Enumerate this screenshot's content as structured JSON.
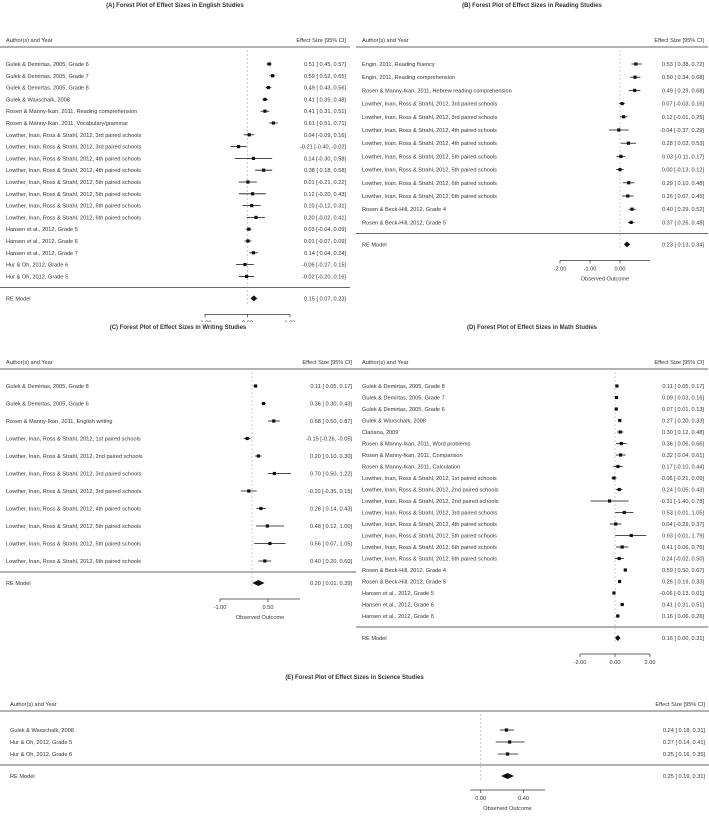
{
  "chart_data": [
    {
      "type": "forest",
      "title": "(A) Forest Plot of Effect Sizes in English Studies",
      "col_study": "Author(s) and Year",
      "col_es": "Effect Size [95% CI]",
      "rows": [
        {
          "label": "Gulek & Demirtas, 2005, Grade 6",
          "es": 0.51,
          "lo": 0.45,
          "hi": 0.57,
          "ci": "0.51 [ 0.45, 0.57]"
        },
        {
          "label": "Gulek & Demirtas, 2005, Grade 7",
          "es": 0.59,
          "lo": 0.52,
          "hi": 0.65,
          "ci": "0.59 [ 0.52, 0.65]"
        },
        {
          "label": "Gulek & Demirtas, 2005, Grade 8",
          "es": 0.49,
          "lo": 0.43,
          "hi": 0.56,
          "ci": "0.49 [ 0.43, 0.56]"
        },
        {
          "label": "Gulek & Waxschalk, 2008",
          "es": 0.41,
          "lo": 0.35,
          "hi": 0.48,
          "ci": "0.41 [ 0.35, 0.48]"
        },
        {
          "label": "Rosen & Manny-Ikan, 2011, Reading comprehension",
          "es": 0.41,
          "lo": 0.31,
          "hi": 0.51,
          "ci": "0.41 [ 0.31, 0.51]"
        },
        {
          "label": "Rosen & Manny-Ikan, 2011, Vocabulary/grammar",
          "es": 0.61,
          "lo": 0.51,
          "hi": 0.71,
          "ci": "0.61 [ 0.51, 0.71]"
        },
        {
          "label": "Lowther, Inan, Ross & Strahl, 2012, 3rd paired schools",
          "es": 0.04,
          "lo": -0.09,
          "hi": 0.16,
          "ci": "0.04 [-0.09, 0.16]"
        },
        {
          "label": "Lowther, Inan, Ross & Strahl, 2012, 3rd paired schools",
          "es": -0.21,
          "lo": -0.4,
          "hi": -0.02,
          "ci": "-0.21 [-0.40, -0.02]"
        },
        {
          "label": "Lowther, Inan, Ross & Strahl, 2012, 4th paired schools",
          "es": 0.14,
          "lo": -0.3,
          "hi": 0.58,
          "ci": "0.14 [-0.30, 0.58]"
        },
        {
          "label": "Lowther, Inan, Ross & Strahl, 2012, 4th paired schools",
          "es": 0.38,
          "lo": 0.18,
          "hi": 0.58,
          "ci": "0.38 [ 0.18, 0.58]"
        },
        {
          "label": "Lowther, Inan, Ross & Strahl, 2012, 5th paired schools",
          "es": 0.01,
          "lo": -0.21,
          "hi": 0.22,
          "ci": "0.01 [-0.21, 0.22]"
        },
        {
          "label": "Lowther, Inan, Ross & Strahl, 2012, 5th paired schools",
          "es": 0.12,
          "lo": -0.2,
          "hi": 0.43,
          "ci": "0.12 [-0.20, 0.43]"
        },
        {
          "label": "Lowther, Inan, Ross & Strahl, 2012, 6th paired schools",
          "es": 0.1,
          "lo": -0.12,
          "hi": 0.31,
          "ci": "0.10 [-0.12, 0.31]"
        },
        {
          "label": "Lowther, Inan, Ross & Strahl, 2012, 6th paired schools",
          "es": 0.2,
          "lo": -0.02,
          "hi": 0.41,
          "ci": "0.20 [-0.02, 0.41]"
        },
        {
          "label": "Hansen et al., 2012, Grade 5",
          "es": 0.03,
          "lo": -0.04,
          "hi": 0.09,
          "ci": "0.03 [-0.04, 0.09]"
        },
        {
          "label": "Hansen et al., 2012, Grade 6",
          "es": 0.01,
          "lo": -0.07,
          "hi": 0.09,
          "ci": "0.01 [-0.07, 0.09]"
        },
        {
          "label": "Hansen et al., 2012, Grade 7",
          "es": 0.14,
          "lo": 0.04,
          "hi": 0.24,
          "ci": "0.14 [ 0.04, 0.24]"
        },
        {
          "label": "Hur & Oh, 2012, Grade 6",
          "es": -0.06,
          "lo": -0.27,
          "hi": 0.15,
          "ci": "-0.06 [-0.27, 0.15]"
        },
        {
          "label": "Hur & Oh, 2012, Grade 5",
          "es": -0.02,
          "lo": -0.2,
          "hi": 0.16,
          "ci": "-0.02 [-0.20, 0.16]"
        }
      ],
      "summary": {
        "label": "RE Model",
        "es": 0.15,
        "lo": 0.07,
        "hi": 0.23,
        "ci": "0.15 [ 0.07, 0.23]"
      },
      "xticks": [
        "-1.00",
        "0.00",
        "1.00"
      ],
      "xlabel": "Observed Outcome",
      "xlim": [
        -1.0,
        1.0
      ]
    },
    {
      "type": "forest",
      "title": "(B) Forest Plot of Effect Sizes in Reading Studies",
      "col_study": "Author(s) and Year",
      "col_es": "Effect Size [95% CI]",
      "rows": [
        {
          "label": "Engin, 2011, Reading fluency",
          "es": 0.53,
          "lo": 0.38,
          "hi": 0.72,
          "ci": "0.53 [ 0.38, 0.72]"
        },
        {
          "label": "Engin, 2011, Reading comprehension",
          "es": 0.5,
          "lo": 0.34,
          "hi": 0.68,
          "ci": "0.50 [ 0.34, 0.68]"
        },
        {
          "label": "Rosen & Manny-Ikan, 2011, Hebrew reading comprehension",
          "es": 0.49,
          "lo": 0.29,
          "hi": 0.68,
          "ci": "0.49 [ 0.29, 0.68]"
        },
        {
          "label": "Lowther, Inan, Ross & Strahl, 2012, 3rd paired schools",
          "es": 0.07,
          "lo": -0.03,
          "hi": 0.16,
          "ci": "0.07 [-0.03, 0.16]"
        },
        {
          "label": "Lowther, Inan, Ross & Strahl, 2012, 3rd paired schools",
          "es": 0.12,
          "lo": -0.01,
          "hi": 0.25,
          "ci": "0.12 [-0.01, 0.25]"
        },
        {
          "label": "Lowther, Inan, Ross & Strahl, 2012, 4th paired schools",
          "es": -0.04,
          "lo": -0.37,
          "hi": 0.29,
          "ci": "-0.04 [-0.37, 0.29]"
        },
        {
          "label": "Lowther, Inan, Ross & Strahl, 2012, 4th paired schools",
          "es": 0.28,
          "lo": 0.03,
          "hi": 0.53,
          "ci": "0.28 [ 0.03, 0.53]"
        },
        {
          "label": "Lowther, Inan, Ross & Strahl, 2012, 5th paired schools",
          "es": 0.03,
          "lo": -0.11,
          "hi": 0.17,
          "ci": "0.03 [-0.11, 0.17]"
        },
        {
          "label": "Lowther, Inan, Ross & Strahl, 2012, 5th paired schools",
          "es": 0.0,
          "lo": -0.13,
          "hi": 0.12,
          "ci": "0.00 [-0.13, 0.12]"
        },
        {
          "label": "Lowther, Inan, Ross & Strahl, 2012, 6th paired schools",
          "es": 0.29,
          "lo": 0.1,
          "hi": 0.48,
          "ci": "0.29 [ 0.10, 0.48]"
        },
        {
          "label": "Lowther, Inan, Ross & Strahl, 2012, 6th paired schools",
          "es": 0.26,
          "lo": 0.07,
          "hi": 0.45,
          "ci": "0.26 [ 0.07, 0.45]"
        },
        {
          "label": "Rosen & Beck-Hill, 2012, Grade 4",
          "es": 0.4,
          "lo": 0.29,
          "hi": 0.52,
          "ci": "0.40 [ 0.29, 0.52]"
        },
        {
          "label": "Rosen & Beck-Hill, 2012, Grade 5",
          "es": 0.37,
          "lo": 0.26,
          "hi": 0.48,
          "ci": "0.37 [ 0.26, 0.48]"
        }
      ],
      "summary": {
        "label": "RE Model",
        "es": 0.23,
        "lo": 0.13,
        "hi": 0.34,
        "ci": "0.23 [ 0.13, 0.34]"
      },
      "xticks": [
        "-2.00",
        "-1.00",
        "0.00"
      ],
      "xlabel": "Observed Outcome",
      "xlim": [
        -2.0,
        1.0
      ]
    },
    {
      "type": "forest",
      "title": "(C) Forest Plot of Effect Sizes in Writing Studies",
      "col_study": "Author(s) and Year",
      "col_es": "Effect Size [95% CI]",
      "rows": [
        {
          "label": "Gulek & Demirtas, 2005, Grade 8",
          "es": 0.11,
          "lo": 0.05,
          "hi": 0.17,
          "ci": "0.11 [ 0.05, 0.17]"
        },
        {
          "label": "Gulek & Demirtas, 2005, Grade 6",
          "es": 0.36,
          "lo": 0.3,
          "hi": 0.43,
          "ci": "0.36 [ 0.30, 0.43]"
        },
        {
          "label": "Rosen & Manny-Ikan, 2011, English writing",
          "es": 0.68,
          "lo": 0.5,
          "hi": 0.87,
          "ci": "0.68 [ 0.50, 0.87]"
        },
        {
          "label": "Lowther, Inan, Ross & Strahl, 2012, 1st paired schools",
          "es": -0.15,
          "lo": -0.26,
          "hi": -0.05,
          "ci": "-0.15 [-0.26, -0.05]"
        },
        {
          "label": "Lowther, Inan, Ross & Strahl, 2012, 2nd paired schools",
          "es": 0.2,
          "lo": 0.1,
          "hi": 0.3,
          "ci": "0.20 [ 0.10, 0.30]"
        },
        {
          "label": "Lowther, Inan, Ross & Strahl, 2012, 3rd paired schools",
          "es": 0.7,
          "lo": 0.5,
          "hi": 1.22,
          "ci": "0.70 [ 0.50, 1.22]"
        },
        {
          "label": "Lowther, Inan, Ross & Strahl, 2012, 3rd paired schools",
          "es": -0.1,
          "lo": -0.35,
          "hi": 0.15,
          "ci": "-0.10 [-0.35, 0.15]"
        },
        {
          "label": "Lowther, Inan, Ross & Strahl, 2012, 4th paired schools",
          "es": 0.28,
          "lo": 0.14,
          "hi": 0.43,
          "ci": "0.28 [ 0.14, 0.43]"
        },
        {
          "label": "Lowther, Inan, Ross & Strahl, 2012, 5th paired schools",
          "es": 0.48,
          "lo": 0.12,
          "hi": 1.0,
          "ci": "0.48 [ 0.12, 1.00]"
        },
        {
          "label": "Lowther, Inan, Ross & Strahl, 2012, 5th paired schools",
          "es": 0.56,
          "lo": 0.07,
          "hi": 1.05,
          "ci": "0.56 [ 0.07, 1.05]"
        },
        {
          "label": "Lowther, Inan, Ross & Strahl, 2012, 6th paired schools",
          "es": 0.4,
          "lo": 0.2,
          "hi": 0.6,
          "ci": "0.40 [ 0.20, 0.60]"
        }
      ],
      "summary": {
        "label": "RE Model",
        "es": 0.2,
        "lo": 0.01,
        "hi": 0.39,
        "ci": "0.20 [ 0.01, 0.39]"
      },
      "xticks": [
        "-1.00",
        "0.50"
      ],
      "xlabel": "Observed Outcome",
      "xlim": [
        -1.0,
        1.5
      ]
    },
    {
      "type": "forest",
      "title": "(D) Forest Plot of Effect Sizes in Math Studies",
      "col_study": "Author(s) and Year",
      "col_es": "Effect Size [95% CI]",
      "rows": [
        {
          "label": "Gulek & Demirtas, 2005, Grade 8",
          "es": 0.11,
          "lo": 0.05,
          "hi": 0.17,
          "ci": "0.11 [ 0.05, 0.17]"
        },
        {
          "label": "Gulek & Demirtas, 2005, Grade 7",
          "es": 0.09,
          "lo": 0.03,
          "hi": 0.16,
          "ci": "0.09 [ 0.03, 0.16]"
        },
        {
          "label": "Gulek & Demirtas, 2005, Grade 6",
          "es": 0.07,
          "lo": 0.01,
          "hi": 0.13,
          "ci": "0.07 [ 0.01, 0.13]"
        },
        {
          "label": "Gulek & Waxschalk, 2008",
          "es": 0.27,
          "lo": 0.2,
          "hi": 0.33,
          "ci": "0.27 [ 0.20, 0.33]"
        },
        {
          "label": "Clariana, 2009",
          "es": 0.3,
          "lo": 0.12,
          "hi": 0.48,
          "ci": "0.30 [ 0.12, 0.48]"
        },
        {
          "label": "Rosen & Manny-Ikan, 2011, Word problems",
          "es": 0.36,
          "lo": 0.06,
          "hi": 0.66,
          "ci": "0.36 [ 0.06, 0.66]"
        },
        {
          "label": "Rosen & Manny-Ikan, 2011, Comparison",
          "es": 0.32,
          "lo": 0.04,
          "hi": 0.61,
          "ci": "0.32 [ 0.04, 0.61]"
        },
        {
          "label": "Rosen & Manny-Ikan, 2011, Calculation",
          "es": 0.17,
          "lo": -0.1,
          "hi": 0.44,
          "ci": "0.17 [-0.10, 0.44]"
        },
        {
          "label": "Lowther, Inan, Ross & Strahl, 2012, 1st paired schools",
          "es": -0.06,
          "lo": -0.21,
          "hi": 0.09,
          "ci": "-0.06 [-0.21, 0.09]"
        },
        {
          "label": "Lowther, Inan, Ross & Strahl, 2012, 2nd paired schools",
          "es": 0.24,
          "lo": 0.05,
          "hi": 0.43,
          "ci": "0.24 [ 0.05, 0.43]"
        },
        {
          "label": "Lowther, Inan, Ross & Strahl, 2012, 2nd paired schools",
          "es": -0.31,
          "lo": -1.4,
          "hi": 0.78,
          "ci": "-0.31 [-1.40, 0.78]"
        },
        {
          "label": "Lowther, Inan, Ross & Strahl, 2012, 3rd paired schools",
          "es": 0.53,
          "lo": 0.01,
          "hi": 1.05,
          "ci": "0.53 [ 0.01, 1.05]"
        },
        {
          "label": "Lowther, Inan, Ross & Strahl, 2012, 4th paired schools",
          "es": 0.04,
          "lo": -0.29,
          "hi": 0.37,
          "ci": "0.04 [-0.29, 0.37]"
        },
        {
          "label": "Lowther, Inan, Ross & Strahl, 2012, 5th paired schools",
          "es": 0.93,
          "lo": 0.01,
          "hi": 1.79,
          "ci": "0.93 [ 0.01, 1.79]"
        },
        {
          "label": "Lowther, Inan, Ross & Strahl, 2012, 6th paired schools",
          "es": 0.41,
          "lo": 0.06,
          "hi": 0.76,
          "ci": "0.41 [ 0.06, 0.76]"
        },
        {
          "label": "Lowther, Inan, Ross & Strahl, 2012, 6th paired schools",
          "es": 0.24,
          "lo": -0.02,
          "hi": 0.5,
          "ci": "0.24 [-0.02, 0.50]"
        },
        {
          "label": "Rosen & Beck-Hill, 2012, Grade 4",
          "es": 0.59,
          "lo": 0.5,
          "hi": 0.67,
          "ci": "0.59 [ 0.50, 0.67]"
        },
        {
          "label": "Rosen & Beck-Hill, 2012, Grade 5",
          "es": 0.26,
          "lo": 0.19,
          "hi": 0.33,
          "ci": "0.26 [ 0.19, 0.33]"
        },
        {
          "label": "Hansen et al., 2012, Grade 5",
          "es": -0.06,
          "lo": -0.13,
          "hi": 0.01,
          "ci": "-0.06 [-0.13, 0.01]"
        },
        {
          "label": "Hansen et al., 2012, Grade 6",
          "es": 0.41,
          "lo": 0.31,
          "hi": 0.51,
          "ci": "0.41 [ 0.31, 0.51]"
        },
        {
          "label": "Hansen et al., 2012, Grade 8",
          "es": 0.16,
          "lo": 0.06,
          "hi": 0.26,
          "ci": "0.16 [ 0.06, 0.26]"
        }
      ],
      "summary": {
        "label": "RE Model",
        "es": 0.16,
        "lo": 0.0,
        "hi": 0.31,
        "ci": "0.16 [ 0.00, 0.31]"
      },
      "xticks": [
        "-2.00",
        "0.00",
        "2.00"
      ],
      "xlabel": "Observed Outcome",
      "xlim": [
        -2.0,
        2.0
      ]
    },
    {
      "type": "forest",
      "title": "(E) Forest Plot of Effect Sizes in Science Studies",
      "col_study": "Author(s) and Year",
      "col_es": "Effect Size [95% CI]",
      "rows": [
        {
          "label": "Gulek & Waxschalk, 2008",
          "es": 0.24,
          "lo": 0.18,
          "hi": 0.31,
          "ci": "0.24 [ 0.18, 0.31]"
        },
        {
          "label": "Hur & Oh, 2012, Grade 5",
          "es": 0.27,
          "lo": 0.14,
          "hi": 0.41,
          "ci": "0.27 [ 0.14, 0.41]"
        },
        {
          "label": "Hur & Oh, 2012, Grade 6",
          "es": 0.25,
          "lo": 0.16,
          "hi": 0.35,
          "ci": "0.25 [ 0.16, 0.35]"
        }
      ],
      "summary": {
        "label": "RE Model",
        "es": 0.25,
        "lo": 0.19,
        "hi": 0.31,
        "ci": "0.25 [ 0.19, 0.31]"
      },
      "xticks": [
        "0.00",
        "0.40"
      ],
      "xlabel": "Observed Outcome",
      "xlim": [
        -0.1,
        0.6
      ]
    }
  ]
}
